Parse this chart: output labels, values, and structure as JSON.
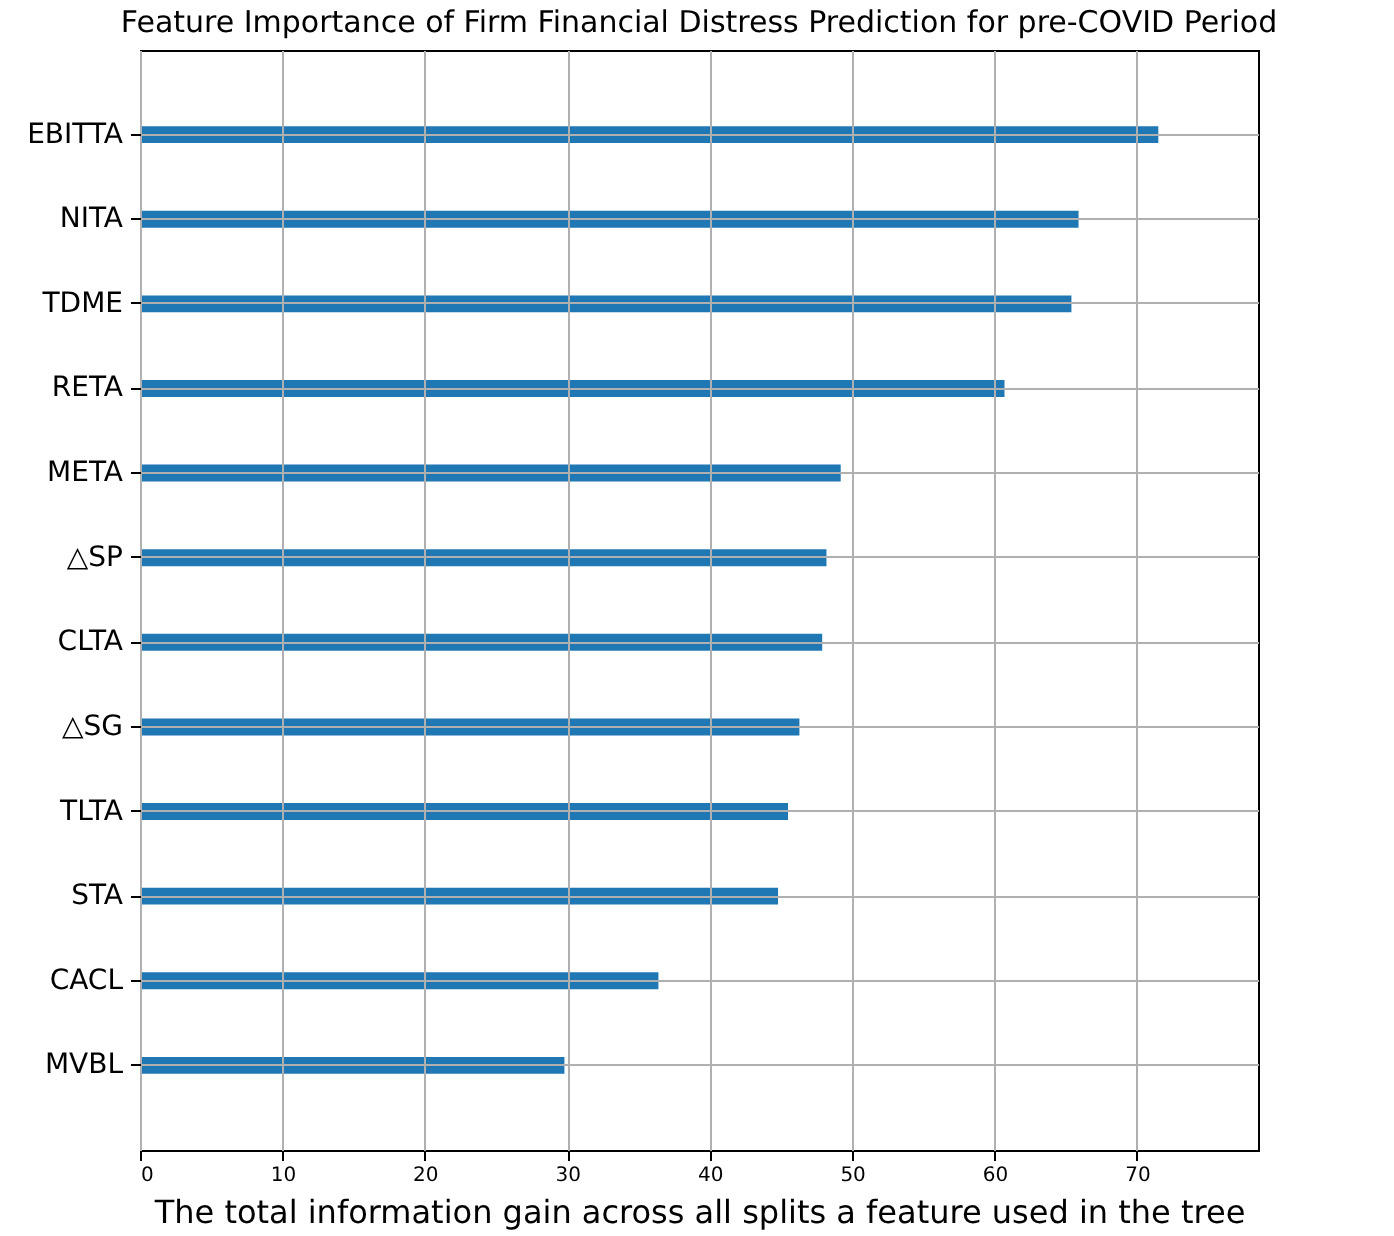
{
  "chart_data": {
    "type": "bar",
    "orientation": "horizontal",
    "title": "Feature Importance of Firm Financial Distress Prediction for pre-COVID Period",
    "xlabel": "The total information gain across all splits a feature used in the tree",
    "categories": [
      "EBITTA",
      "NITA",
      "TDME",
      "RETA",
      "META",
      "△SP",
      "CLTA",
      "△SG",
      "TLTA",
      "STA",
      "CACL",
      "MVBL"
    ],
    "values": [
      71.5,
      65.9,
      65.4,
      60.7,
      49.2,
      48.2,
      47.9,
      46.3,
      45.5,
      44.8,
      36.4,
      29.8
    ],
    "color": "#1f77b4",
    "xlim": [
      0,
      78.5
    ],
    "xticks": [
      0,
      10,
      20,
      30,
      40,
      50,
      60,
      70
    ],
    "grid": true
  }
}
